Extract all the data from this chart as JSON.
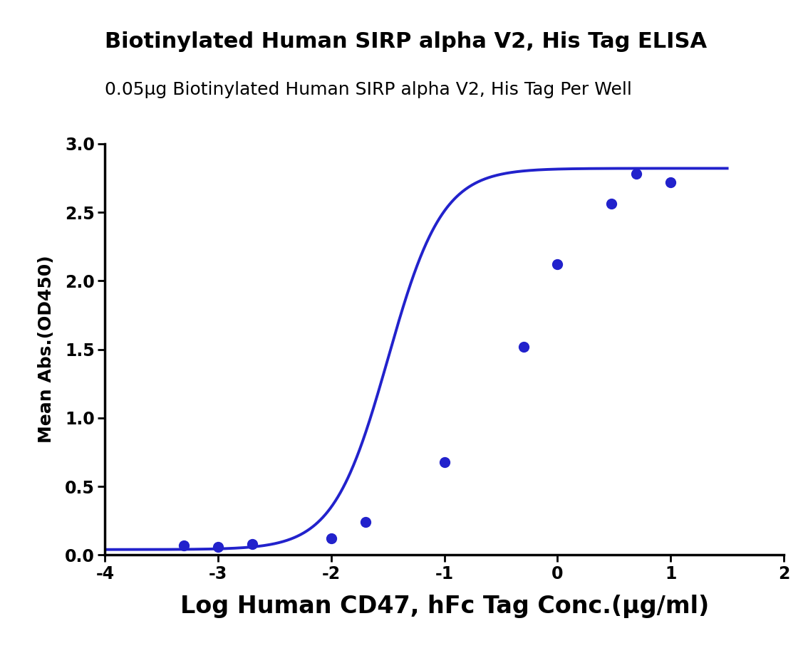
{
  "title": "Biotinylated Human SIRP alpha V2, His Tag ELISA",
  "subtitle": "0.05μg Biotinylated Human SIRP alpha V2, His Tag Per Well",
  "xlabel": "Log Human CD47, hFc Tag Conc.(μg/ml)",
  "ylabel": "Mean Abs.(OD450)",
  "curve_color": "#2222cc",
  "marker_color": "#2222cc",
  "x_data": [
    -3.301,
    -3.0,
    -2.699,
    -2.0,
    -1.699,
    -1.0,
    -0.301,
    0.0,
    0.477,
    0.699,
    1.0
  ],
  "y_data": [
    0.07,
    0.06,
    0.08,
    0.12,
    0.24,
    0.68,
    1.52,
    2.12,
    2.56,
    2.78,
    2.72
  ],
  "xlim": [
    -4,
    2
  ],
  "ylim": [
    0.0,
    3.0
  ],
  "xticks": [
    -4,
    -3,
    -2,
    -1,
    0,
    1,
    2
  ],
  "yticks": [
    0.0,
    0.5,
    1.0,
    1.5,
    2.0,
    2.5,
    3.0
  ],
  "title_fontsize": 22,
  "subtitle_fontsize": 18,
  "xlabel_fontsize": 24,
  "ylabel_fontsize": 18,
  "tick_fontsize": 17,
  "line_width": 2.8,
  "marker_size": 10,
  "background_color": "#ffffff"
}
